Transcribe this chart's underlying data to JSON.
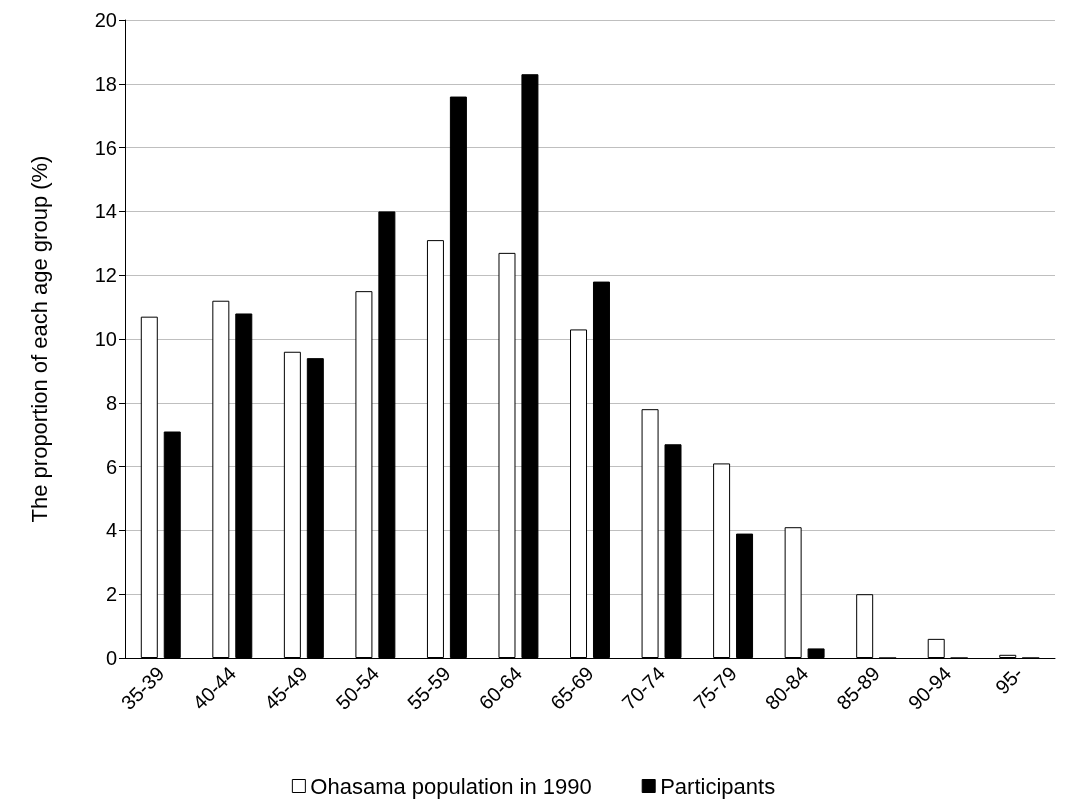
{
  "chart_data": {
    "type": "bar",
    "ylabel": "The proportion of each age group (%)",
    "categories": [
      "35-39",
      "40-44",
      "45-49",
      "50-54",
      "55-59",
      "60-64",
      "65-69",
      "70-74",
      "75-79",
      "80-84",
      "85-89",
      "90-94",
      "95-"
    ],
    "series": [
      {
        "name": "Ohasama population in 1990",
        "color": "#ffffff",
        "values": [
          10.7,
          11.2,
          9.6,
          11.5,
          13.1,
          12.7,
          10.3,
          7.8,
          6.1,
          4.1,
          2.0,
          0.6,
          0.1
        ]
      },
      {
        "name": "Participants",
        "color": "#000000",
        "values": [
          7.1,
          10.8,
          9.4,
          14.0,
          17.6,
          18.3,
          11.8,
          6.7,
          3.9,
          0.3,
          0,
          0,
          0
        ]
      }
    ],
    "ylim": [
      0,
      20
    ],
    "yticks": [
      0,
      2,
      4,
      6,
      8,
      10,
      12,
      14,
      16,
      18,
      20
    ],
    "grid": "y",
    "legend": "bottom"
  }
}
